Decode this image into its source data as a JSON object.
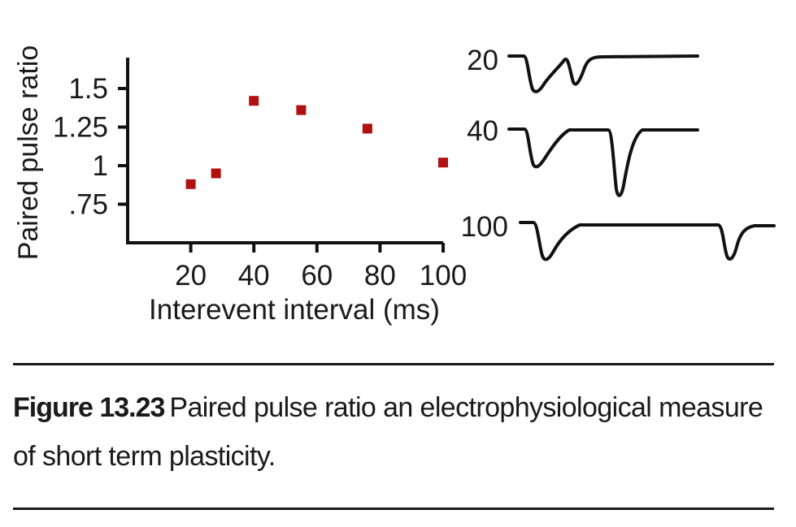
{
  "chart_data": {
    "type": "scatter",
    "xlabel": "Interevent interval (ms)",
    "ylabel": "Paired pulse ratio",
    "x": [
      20,
      28,
      40,
      55,
      76,
      100
    ],
    "y": [
      0.88,
      0.95,
      1.42,
      1.36,
      1.24,
      1.02
    ],
    "xlim": [
      0,
      100
    ],
    "ylim": [
      0.5,
      1.7
    ],
    "xticks": [
      20,
      40,
      60,
      80,
      100
    ],
    "xtick_labels": [
      "20",
      "40",
      "60",
      "80",
      "100"
    ],
    "yticks": [
      0.75,
      1.0,
      1.25,
      1.5
    ],
    "ytick_labels": [
      ".75",
      "1",
      "1.25",
      "1.5"
    ],
    "marker_color": "#b01010",
    "grid": false,
    "traces": [
      {
        "label": "20"
      },
      {
        "label": "40"
      },
      {
        "label": "100"
      }
    ]
  },
  "caption": {
    "label": "Figure 13.23",
    "text": "Paired pulse ratio an electrophysiological measure of short term plasticity."
  }
}
